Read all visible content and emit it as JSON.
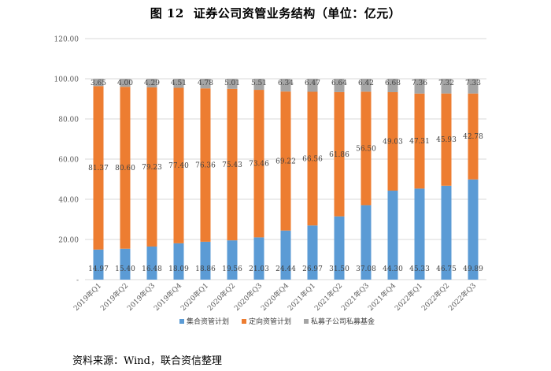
{
  "title": {
    "figure": "图 12",
    "text": "证券公司资管业务结构（单位：亿元）"
  },
  "source": "资料来源：Wind，联合资信整理",
  "chart_data": {
    "type": "bar",
    "stacked": true,
    "title": "证券公司资管业务结构（单位：亿元）",
    "categories": [
      "2019年Q1",
      "2019年Q2",
      "2019年Q3",
      "2019年Q4",
      "2020年Q1",
      "2020年Q2",
      "2020年Q3",
      "2020年Q4",
      "2021年Q1",
      "2021年Q2",
      "2021年Q3",
      "2021年Q4",
      "2022年Q1",
      "2022年Q2",
      "2022年Q3"
    ],
    "series": [
      {
        "name": "集合资管计划",
        "color": "#5b9bd5",
        "values": [
          14.97,
          15.4,
          16.48,
          18.09,
          18.86,
          19.56,
          21.03,
          24.44,
          26.97,
          31.5,
          37.08,
          44.3,
          45.33,
          46.75,
          49.89
        ],
        "labels": [
          "14.97",
          "15.40",
          "16.48",
          "18.09",
          "18.86",
          "19.56",
          "21.03",
          "24.44",
          "26.97",
          "31.50",
          "37.08",
          "44.30",
          "45.33",
          "46.75",
          "49.89"
        ]
      },
      {
        "name": "定向资管计划",
        "color": "#ed7d31",
        "values": [
          81.37,
          80.6,
          79.23,
          77.4,
          76.36,
          75.43,
          73.46,
          69.22,
          66.56,
          61.86,
          56.5,
          49.03,
          47.31,
          45.93,
          42.78
        ],
        "labels": [
          "81.37",
          "80.60",
          "79.23",
          "77.40",
          "76.36",
          "75.43",
          "73.46",
          "69.22",
          "66.56",
          "61.86",
          "56.50",
          "49.03",
          "47.31",
          "45.93",
          "42.78"
        ]
      },
      {
        "name": "私募子公司私募基金",
        "color": "#a5a5a5",
        "values": [
          3.65,
          4.0,
          4.29,
          4.51,
          4.78,
          5.01,
          5.51,
          6.34,
          6.47,
          6.64,
          6.42,
          6.68,
          7.36,
          7.32,
          7.33
        ],
        "labels": [
          "3.65",
          "4.00",
          "4.29",
          "4.51",
          "4.78",
          "5.01",
          "5.51",
          "6.34",
          "6.47",
          "6.64",
          "6.42",
          "6.68",
          "7.36",
          "7.32",
          "7.33"
        ]
      }
    ],
    "yticks": [
      "-",
      "20.00",
      "40.00",
      "60.00",
      "80.00",
      "100.00",
      "120.00"
    ],
    "ylim": [
      0,
      120
    ],
    "legend_position": "bottom"
  }
}
